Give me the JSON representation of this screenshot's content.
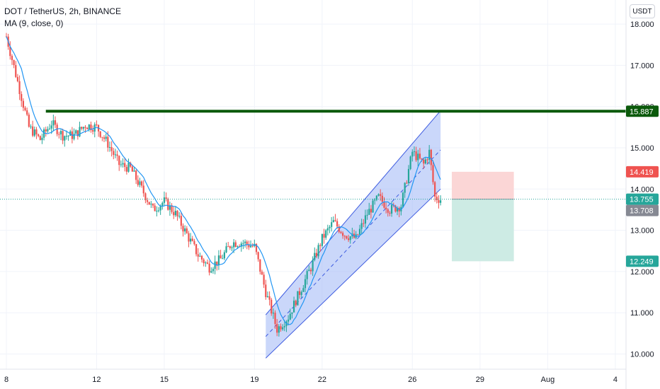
{
  "legend": {
    "symbol": "DOT / TetherUS, 2h, BINANCE",
    "indicator": "MA (9, close, 0)"
  },
  "currency_button": "USDT",
  "colors": {
    "up": "#26a69a",
    "down": "#ef5350",
    "ma": "#2196f3",
    "resistance": "#0b5a0b",
    "channel_fill": "#9fb7f5",
    "channel_line": "#3d5be0",
    "stop_fill": "#fbd6d6",
    "target_fill": "#cdebe4",
    "last_price_tag": "#26a69a",
    "ma_tag": "#868993"
  },
  "chart_data": {
    "type": "candlestick",
    "y_ticks": [
      "10.000",
      "11.000",
      "12.000",
      "13.000",
      "14.000",
      "15.000",
      "16.000",
      "17.000",
      "18.000"
    ],
    "ylim": [
      9.6,
      18.2
    ],
    "x_ticks": [
      "8",
      "12",
      "15",
      "19",
      "22",
      "26",
      "29",
      "Aug",
      "4"
    ],
    "price_tags": {
      "resistance": "15.887",
      "stop_loss": "14.419",
      "last_price": "13.755",
      "ma_value": "13.708",
      "take_profit": "12.249"
    },
    "resistance_level": 15.887,
    "entry": 13.755,
    "stop_loss": 14.419,
    "take_profit": 12.249,
    "channel": {
      "lower_line": [
        [
          "Jul 19 12:00",
          9.9
        ],
        [
          "Jul 27 06:00",
          14.0
        ]
      ],
      "upper_line": [
        [
          "Jul 19 12:00",
          10.95
        ],
        [
          "Jul 27 06:00",
          15.9
        ]
      ]
    },
    "price_path_approx": [
      [
        "Jul 8",
        17.7
      ],
      [
        "Jul 8 12:00",
        16.6
      ],
      [
        "Jul 9",
        15.5
      ],
      [
        "Jul 9 12:00",
        15.2
      ],
      [
        "Jul 10",
        15.6
      ],
      [
        "Jul 10 12:00",
        15.3
      ],
      [
        "Jul 11",
        15.3
      ],
      [
        "Jul 11 12:00",
        15.55
      ],
      [
        "Jul 12",
        15.5
      ],
      [
        "Jul 12 12:00",
        15.1
      ],
      [
        "Jul 13",
        14.6
      ],
      [
        "Jul 13 12:00",
        14.5
      ],
      [
        "Jul 14",
        14.0
      ],
      [
        "Jul 14 12:00",
        13.5
      ],
      [
        "Jul 15",
        13.7
      ],
      [
        "Jul 15 12:00",
        13.4
      ],
      [
        "Jul 16",
        12.9
      ],
      [
        "Jul 16 12:00",
        12.4
      ],
      [
        "Jul 17",
        12.1
      ],
      [
        "Jul 17 12:00",
        12.3
      ],
      [
        "Jul 18",
        12.7
      ],
      [
        "Jul 18 12:00",
        12.7
      ],
      [
        "Jul 19",
        12.6
      ],
      [
        "Jul 19 12:00",
        11.5
      ],
      [
        "Jul 20",
        10.6
      ],
      [
        "Jul 20 12:00",
        10.9
      ],
      [
        "Jul 21",
        11.5
      ],
      [
        "Jul 21 12:00",
        12.1
      ],
      [
        "Jul 22",
        12.8
      ],
      [
        "Jul 22 12:00",
        13.2
      ],
      [
        "Jul 23",
        12.9
      ],
      [
        "Jul 23 12:00",
        12.8
      ],
      [
        "Jul 24",
        13.4
      ],
      [
        "Jul 24 12:00",
        13.8
      ],
      [
        "Jul 25",
        13.5
      ],
      [
        "Jul 25 12:00",
        13.6
      ],
      [
        "Jul 26",
        14.9
      ],
      [
        "Jul 26 12:00",
        14.6
      ],
      [
        "Jul 26 18:00",
        14.9
      ],
      [
        "Jul 27",
        13.8
      ],
      [
        "Jul 27 06:00",
        13.75
      ]
    ]
  }
}
